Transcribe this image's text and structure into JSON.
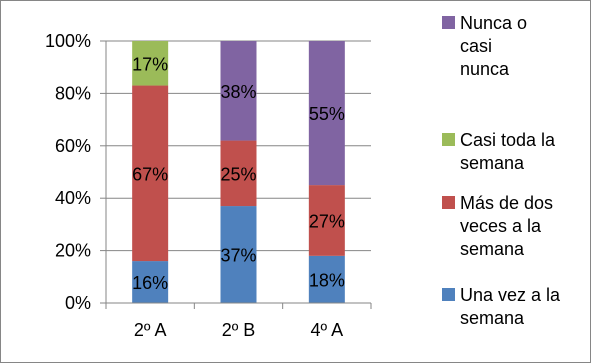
{
  "chart_data": {
    "type": "bar",
    "stacked": true,
    "stack_mode": "percent",
    "categories": [
      "2º A",
      "2º B",
      "4º A"
    ],
    "ylim": [
      0,
      100
    ],
    "yticks": [
      0,
      20,
      40,
      60,
      80,
      100
    ],
    "ytick_labels": [
      "0%",
      "20%",
      "40%",
      "60%",
      "80%",
      "100%"
    ],
    "grid": true,
    "legend_position": "right",
    "series": [
      {
        "name": "Una vez a la semana",
        "legend_lines": [
          "Una vez a la",
          "semana"
        ],
        "color": "#4F81BD",
        "values": [
          16,
          37,
          18
        ],
        "labels": [
          "16%",
          "37%",
          "18%"
        ]
      },
      {
        "name": "Más de dos veces a la semana",
        "legend_lines": [
          "Más de dos",
          "veces a la",
          "semana"
        ],
        "color": "#C0504D",
        "values": [
          67,
          25,
          27
        ],
        "labels": [
          "67%",
          "25%",
          "27%"
        ]
      },
      {
        "name": "Casi toda la semana",
        "legend_lines": [
          "Casi toda la",
          "semana"
        ],
        "color": "#9BBB59",
        "values": [
          17,
          0,
          0
        ],
        "labels": [
          "17%",
          "",
          ""
        ]
      },
      {
        "name": "Nunca o casi nunca",
        "legend_lines": [
          "Nunca o",
          "casi",
          "nunca"
        ],
        "color": "#8064A2",
        "values": [
          0,
          38,
          55
        ],
        "labels": [
          "",
          "38%",
          "55%"
        ]
      }
    ]
  }
}
